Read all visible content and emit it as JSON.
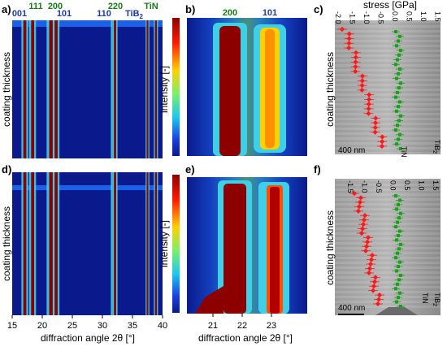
{
  "panels": {
    "a": "a)",
    "b": "b)",
    "c": "c)",
    "d": "d)",
    "e": "e)",
    "f": "f)"
  },
  "peaks_a": [
    {
      "label": "001",
      "color": "#1f3aa8"
    },
    {
      "label": "111",
      "color": "#1a7a1a"
    },
    {
      "label": "200",
      "color": "#1a7a1a"
    },
    {
      "label": "101",
      "color": "#1f3aa8"
    },
    {
      "label": "110",
      "color": "#1f3aa8"
    },
    {
      "label": "220",
      "color": "#1a7a1a"
    },
    {
      "label": "TiB",
      "sub": "2",
      "color": "#1f3aa8"
    },
    {
      "label": "TiN",
      "color": "#1a7a1a"
    }
  ],
  "peaks_b": [
    {
      "label": "200",
      "color": "#1a7a1a"
    },
    {
      "label": "101",
      "color": "#1f3aa8"
    }
  ],
  "axes": {
    "coating_thickness": "coating thickness",
    "intensity": "intensity [-]",
    "diffraction": "diffraction angle 2θ [°]",
    "stress": "stress [GPa]"
  },
  "ticks": {
    "x_left": [
      "15",
      "20",
      "25",
      "30",
      "35",
      "40"
    ],
    "x_right": [
      "21",
      "22",
      "23"
    ],
    "stress": [
      "-2.0",
      "-1.5",
      "-1.0",
      "-0.5",
      "0.0",
      "0.5",
      "1.0",
      "1.5"
    ],
    "stress_f": [
      "-1.5",
      "-1.0",
      "-0.5",
      "0.0",
      "0.5",
      "1.0",
      "1.5"
    ]
  },
  "scale_bar": "400 nm",
  "legend": {
    "tin": "TiN",
    "tib2": "TiB",
    "tib2_sub": "2"
  },
  "colors": {
    "navy": "#0a1a8c",
    "red": "#8c0000",
    "cyan": "#3fd0e8",
    "marker_red": "#ff1a1a",
    "marker_green": "#1aa01a"
  }
}
